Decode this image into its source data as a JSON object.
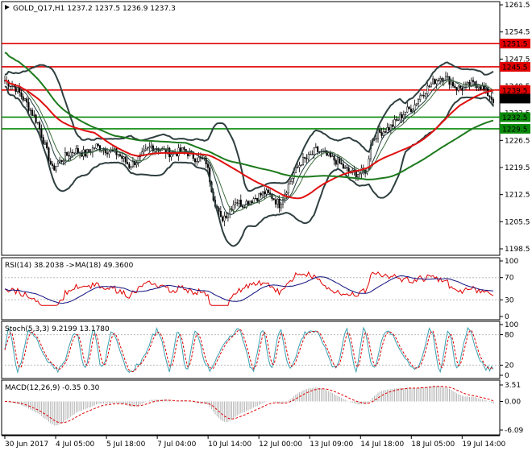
{
  "header": {
    "symbol": "GOLD_Q17,H1",
    "ohlc": "1237.2 1237.5 1236.9 1237.3"
  },
  "colors": {
    "candle": "#000000",
    "bollinger": "#2f3f40",
    "ma_fast": "#1f3a3a",
    "ma_slow_green": "#1c7a1c",
    "ma_red": "#e01010",
    "level_red": "#e00000",
    "level_green": "#0a8a0a",
    "rsi": "#e00000",
    "rsi_ma": "#101080",
    "stoch_main": "#3aa0b0",
    "stoch_signal": "#e00000",
    "macd_hist": "#b0b0b0",
    "macd_signal": "#e00000",
    "axis": "#000000"
  },
  "price_axis": {
    "ticks": [
      "1261.5",
      "1254.5",
      "1247.5",
      "1240.5",
      "1233.5",
      "1226.5",
      "1219.5",
      "1212.5",
      "1205.5",
      "1198.5"
    ],
    "range": [
      1198.5,
      1261.5
    ]
  },
  "levels": [
    {
      "value": "1251.5",
      "color": "red"
    },
    {
      "value": "1245.5",
      "color": "red"
    },
    {
      "value": "1239.5",
      "color": "red"
    },
    {
      "value": "1237.3",
      "color": "current"
    },
    {
      "value": "1232.5",
      "color": "green"
    },
    {
      "value": "1229.5",
      "color": "green"
    }
  ],
  "time_axis": [
    "30 Jun 2017",
    "4 Jul 05:00",
    "5 Jul 18:00",
    "7 Jul 04:00",
    "10 Jul 14:00",
    "12 Jul 00:00",
    "13 Jul 09:00",
    "14 Jul 18:00",
    "18 Jul 05:00",
    "19 Jul 14:00"
  ],
  "rsi": {
    "label": "RSI(14) 38.2038  ->MA(18) 49.3600",
    "ticks": [
      "100",
      "70",
      "30",
      "0"
    ]
  },
  "stoch": {
    "label": "Stoch(5,3,3) 9.2199 13.1780",
    "ticks": [
      "100",
      "80",
      "20",
      "0"
    ]
  },
  "macd": {
    "label": "MACD(12,26,9) -0.35 0.30",
    "ticks": [
      "3.51",
      "0.00",
      "-6.09"
    ]
  },
  "chart_data": {
    "type": "candlestick",
    "symbol": "GOLD_Q17",
    "timeframe": "H1",
    "ylim": [
      1198.5,
      1261.5
    ],
    "close_path": [
      [
        0,
        1242
      ],
      [
        6,
        1240
      ],
      [
        12,
        1236
      ],
      [
        18,
        1231
      ],
      [
        22,
        1225
      ],
      [
        26,
        1219
      ],
      [
        32,
        1222
      ],
      [
        38,
        1224
      ],
      [
        44,
        1223
      ],
      [
        50,
        1225
      ],
      [
        56,
        1224
      ],
      [
        62,
        1223
      ],
      [
        68,
        1220
      ],
      [
        74,
        1222
      ],
      [
        80,
        1225
      ],
      [
        86,
        1224
      ],
      [
        92,
        1223
      ],
      [
        98,
        1224
      ],
      [
        104,
        1222
      ],
      [
        110,
        1221
      ],
      [
        114,
        1212
      ],
      [
        118,
        1206
      ],
      [
        122,
        1208
      ],
      [
        126,
        1211
      ],
      [
        130,
        1210
      ],
      [
        134,
        1211
      ],
      [
        138,
        1212
      ],
      [
        142,
        1213
      ],
      [
        146,
        1212
      ],
      [
        150,
        1210
      ],
      [
        154,
        1214
      ],
      [
        158,
        1218
      ],
      [
        162,
        1221
      ],
      [
        166,
        1222
      ],
      [
        170,
        1224
      ],
      [
        174,
        1223
      ],
      [
        178,
        1222
      ],
      [
        182,
        1221
      ],
      [
        186,
        1219
      ],
      [
        190,
        1218
      ],
      [
        194,
        1218
      ],
      [
        198,
        1219
      ],
      [
        200,
        1226
      ],
      [
        203,
        1228
      ],
      [
        207,
        1229
      ],
      [
        211,
        1230
      ],
      [
        215,
        1232
      ],
      [
        219,
        1234
      ],
      [
        223,
        1235
      ],
      [
        227,
        1238
      ],
      [
        231,
        1240
      ],
      [
        235,
        1242
      ],
      [
        239,
        1243
      ],
      [
        243,
        1242
      ],
      [
        247,
        1240
      ],
      [
        251,
        1240
      ],
      [
        255,
        1241
      ],
      [
        259,
        1241
      ],
      [
        263,
        1239
      ],
      [
        267,
        1237
      ]
    ]
  }
}
